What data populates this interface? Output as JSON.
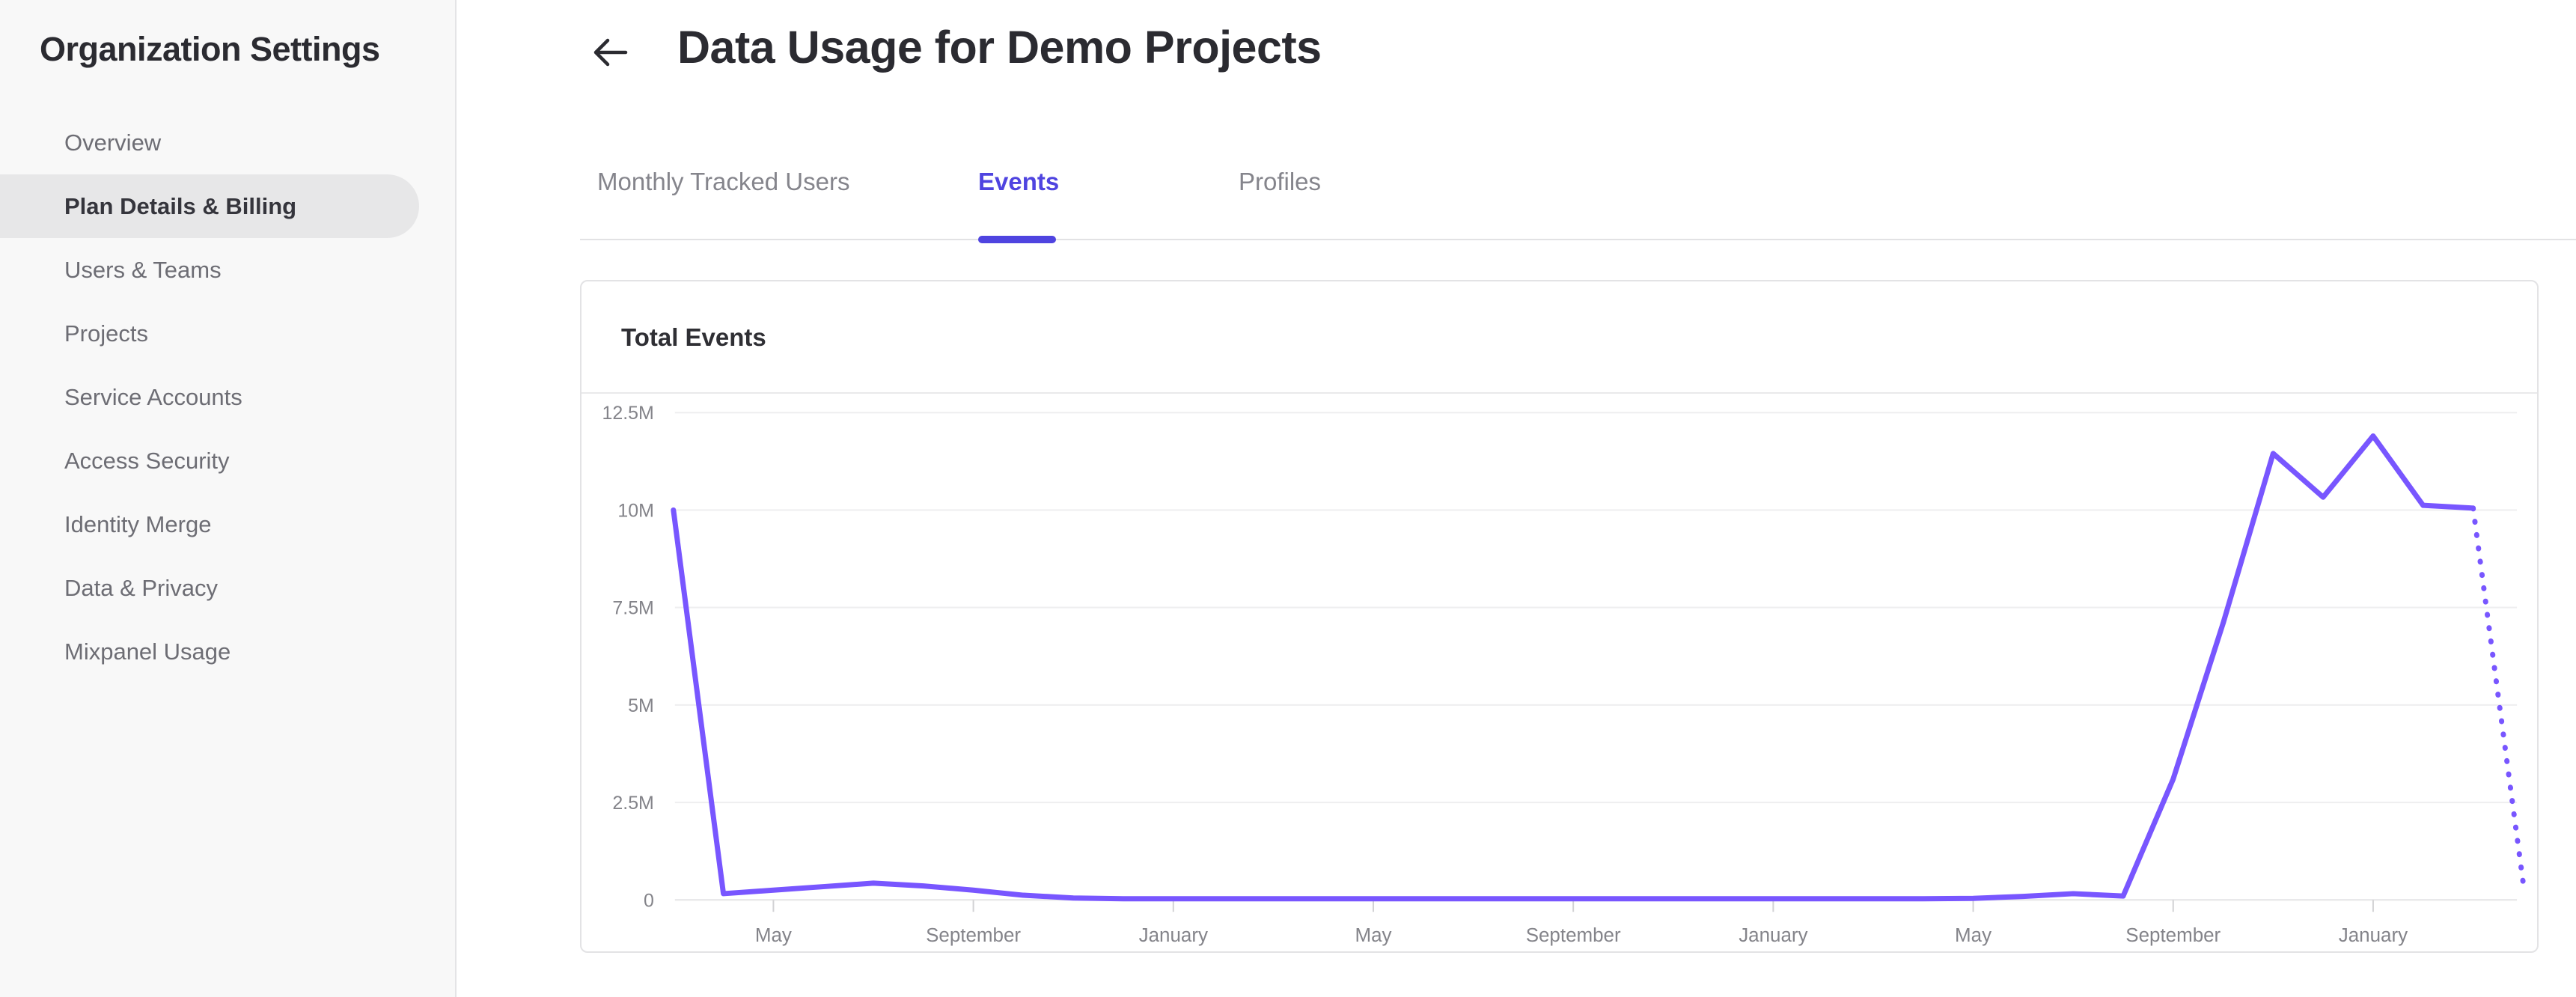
{
  "sidebar": {
    "title": "Organization Settings",
    "items": [
      {
        "label": "Overview",
        "active": false
      },
      {
        "label": "Plan Details & Billing",
        "active": true
      },
      {
        "label": "Users & Teams",
        "active": false
      },
      {
        "label": "Projects",
        "active": false
      },
      {
        "label": "Service Accounts",
        "active": false
      },
      {
        "label": "Access Security",
        "active": false
      },
      {
        "label": "Identity Merge",
        "active": false
      },
      {
        "label": "Data & Privacy",
        "active": false
      },
      {
        "label": "Mixpanel Usage",
        "active": false
      }
    ]
  },
  "header": {
    "title": "Data Usage for Demo Projects",
    "back_icon": "arrow-left-icon"
  },
  "tabs": [
    {
      "label": "Monthly Tracked Users",
      "active": false
    },
    {
      "label": "Events",
      "active": true
    },
    {
      "label": "Profiles",
      "active": false
    }
  ],
  "card": {
    "title": "Total Events"
  },
  "colors": {
    "accent_indigo": "#4f44e0",
    "chart_line_violet": "#7856ff",
    "grid_line": "#eeeeef",
    "axis_line": "#e4e4e6",
    "tick_mark": "#d2d2d4",
    "axis_label_gray": "#84848a",
    "tab_inactive_gray": "#85858c",
    "text_dark": "#2b2b31",
    "sidebar_bg": "#f8f8f8",
    "active_pill_gray": "#e7e7e8"
  },
  "chart_data": {
    "type": "line",
    "title": "Total Events",
    "series": [
      {
        "name": "Total Events",
        "unit": "events",
        "values_millions": [
          10,
          0.16,
          0.25,
          0.34,
          0.43,
          0.36,
          0.25,
          0.12,
          0.05,
          0.03,
          0.03,
          0.03,
          0.03,
          0.03,
          0.03,
          0.03,
          0.03,
          0.03,
          0.03,
          0.03,
          0.03,
          0.03,
          0.03,
          0.03,
          0.03,
          0.03,
          0.04,
          0.09,
          0.16,
          0.1,
          3.1,
          7.1,
          11.45,
          10.33,
          11.9,
          10.12,
          10.05,
          0.45
        ]
      }
    ],
    "points_are_monthly": true,
    "dotted_from_index": 36,
    "projection_style": "dotted",
    "x_tick_labels": [
      "May",
      "September",
      "January",
      "May",
      "September",
      "January",
      "May",
      "September",
      "January"
    ],
    "x_tick_month_indices": [
      2,
      6,
      10,
      14,
      18,
      22,
      26,
      30,
      34
    ],
    "y_tick_labels": [
      "0",
      "2.5M",
      "5M",
      "7.5M",
      "10M",
      "12.5M"
    ],
    "y_tick_values_millions": [
      0,
      2.5,
      5,
      7.5,
      10,
      12.5
    ],
    "ylim_millions": [
      0,
      12.5
    ],
    "grid": true,
    "legend": false,
    "line_color": "#7856ff"
  }
}
